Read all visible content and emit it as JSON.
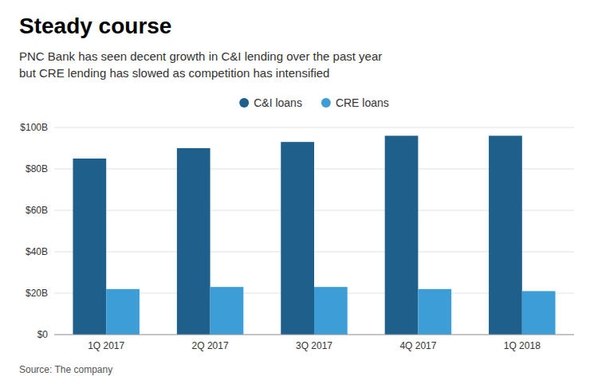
{
  "chart_data": {
    "type": "bar",
    "title": "Steady course",
    "subtitle": "PNC Bank has seen decent growth in C&I lending over the past year\nbut CRE lending has slowed as competition has intensified",
    "source": "Source: The company",
    "categories": [
      "1Q 2017",
      "2Q 2017",
      "3Q 2017",
      "4Q 2017",
      "1Q 2018"
    ],
    "series": [
      {
        "name": "C&I loans",
        "color": "#1f5f8b",
        "values": [
          85,
          90,
          93,
          96,
          96
        ]
      },
      {
        "name": "CRE loans",
        "color": "#3d9dd6",
        "values": [
          22,
          23,
          23,
          22,
          21
        ]
      }
    ],
    "ylim": [
      0,
      100
    ],
    "yticks": [
      {
        "value": 0,
        "label": "$0"
      },
      {
        "value": 20,
        "label": "$20B"
      },
      {
        "value": 40,
        "label": "$40B"
      },
      {
        "value": 60,
        "label": "$60B"
      },
      {
        "value": 80,
        "label": "$80B"
      },
      {
        "value": 100,
        "label": "$100B"
      }
    ],
    "grid": true,
    "legend": "top"
  }
}
